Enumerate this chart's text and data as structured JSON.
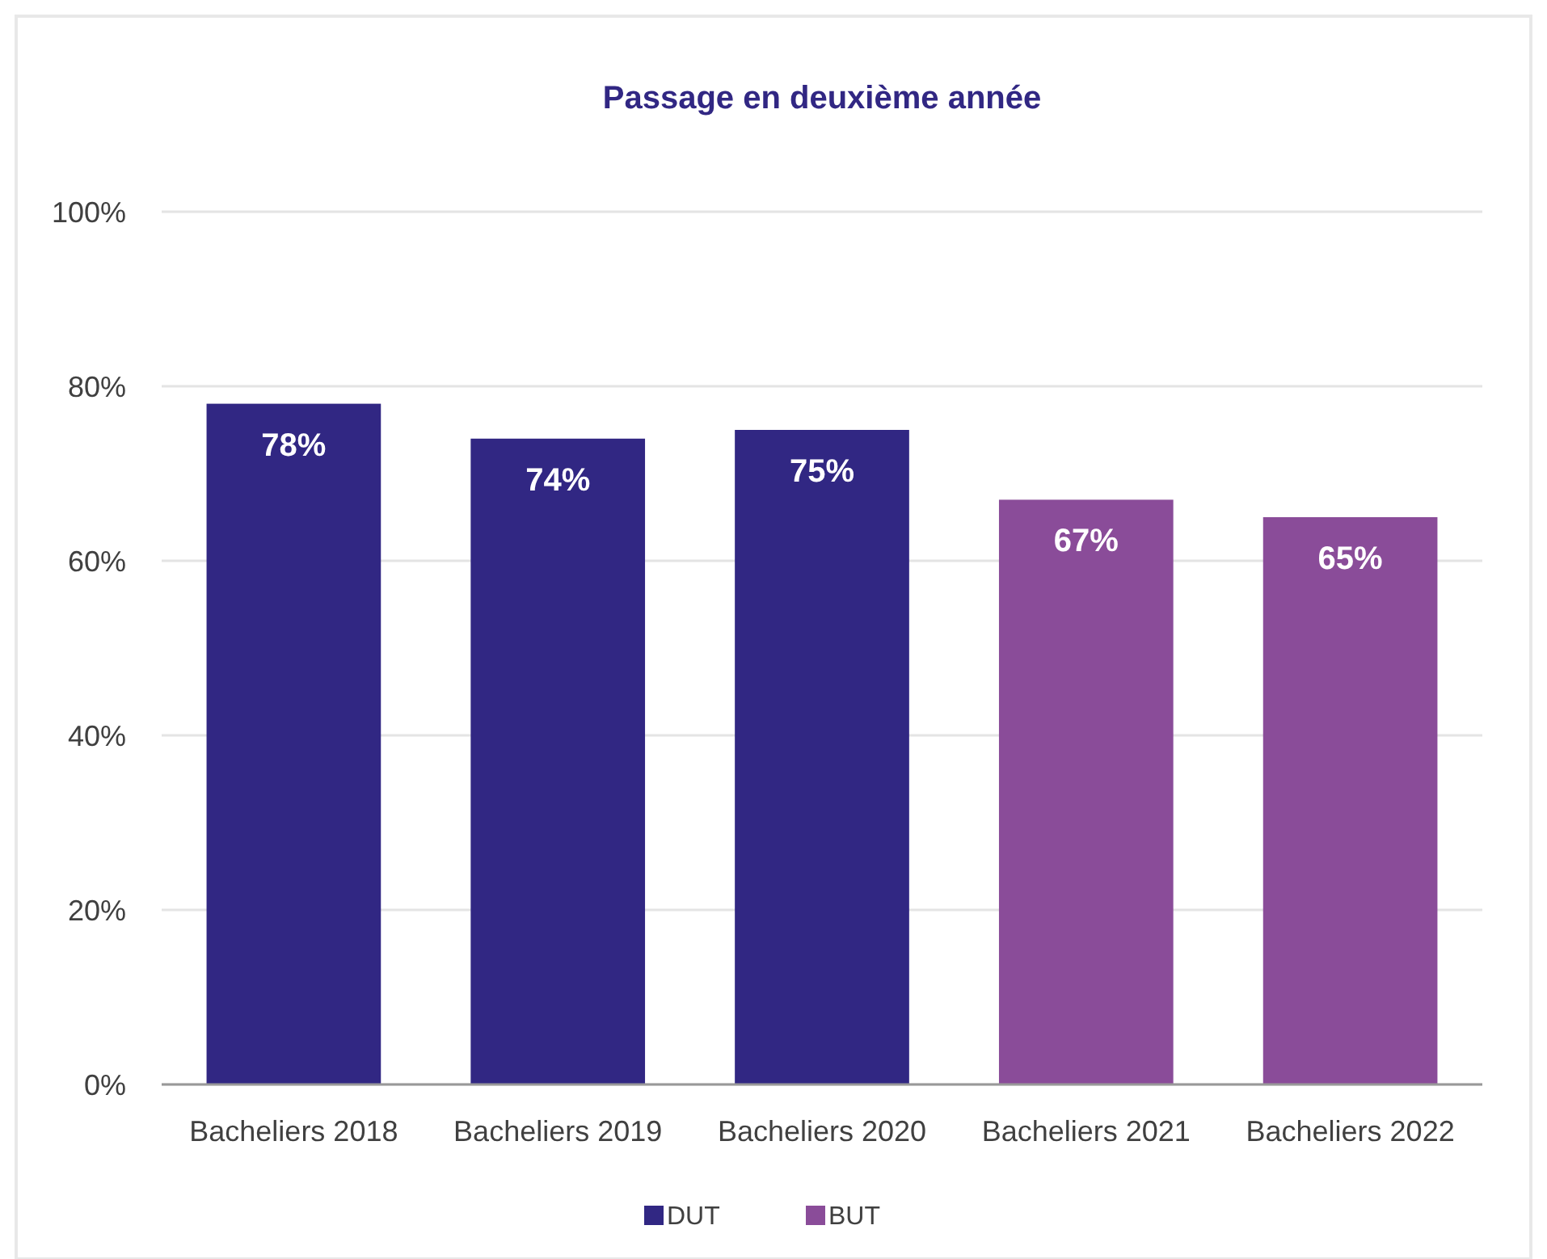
{
  "chart_data": {
    "type": "bar",
    "title": "Passage en deuxième année",
    "categories": [
      "Bacheliers 2018",
      "Bacheliers 2019",
      "Bacheliers 2020",
      "Bacheliers 2021",
      "Bacheliers 2022"
    ],
    "series": [
      {
        "name": "DUT",
        "color": "#312783",
        "values": [
          78,
          74,
          75,
          null,
          null
        ],
        "value_labels": [
          "78%",
          "74%",
          "75%",
          null,
          null
        ]
      },
      {
        "name": "BUT",
        "color": "#8a4c99",
        "values": [
          null,
          null,
          null,
          67,
          65
        ],
        "value_labels": [
          null,
          null,
          null,
          "67%",
          "65%"
        ]
      }
    ],
    "stacked": true,
    "ylim": [
      0,
      100
    ],
    "yticks": [
      {
        "value": 0,
        "label": "0%"
      },
      {
        "value": 20,
        "label": "20%"
      },
      {
        "value": 40,
        "label": "40%"
      },
      {
        "value": 60,
        "label": "60%"
      },
      {
        "value": 80,
        "label": "80%"
      },
      {
        "value": 100,
        "label": "100%"
      }
    ],
    "grid": "y",
    "legend": "bottom"
  }
}
